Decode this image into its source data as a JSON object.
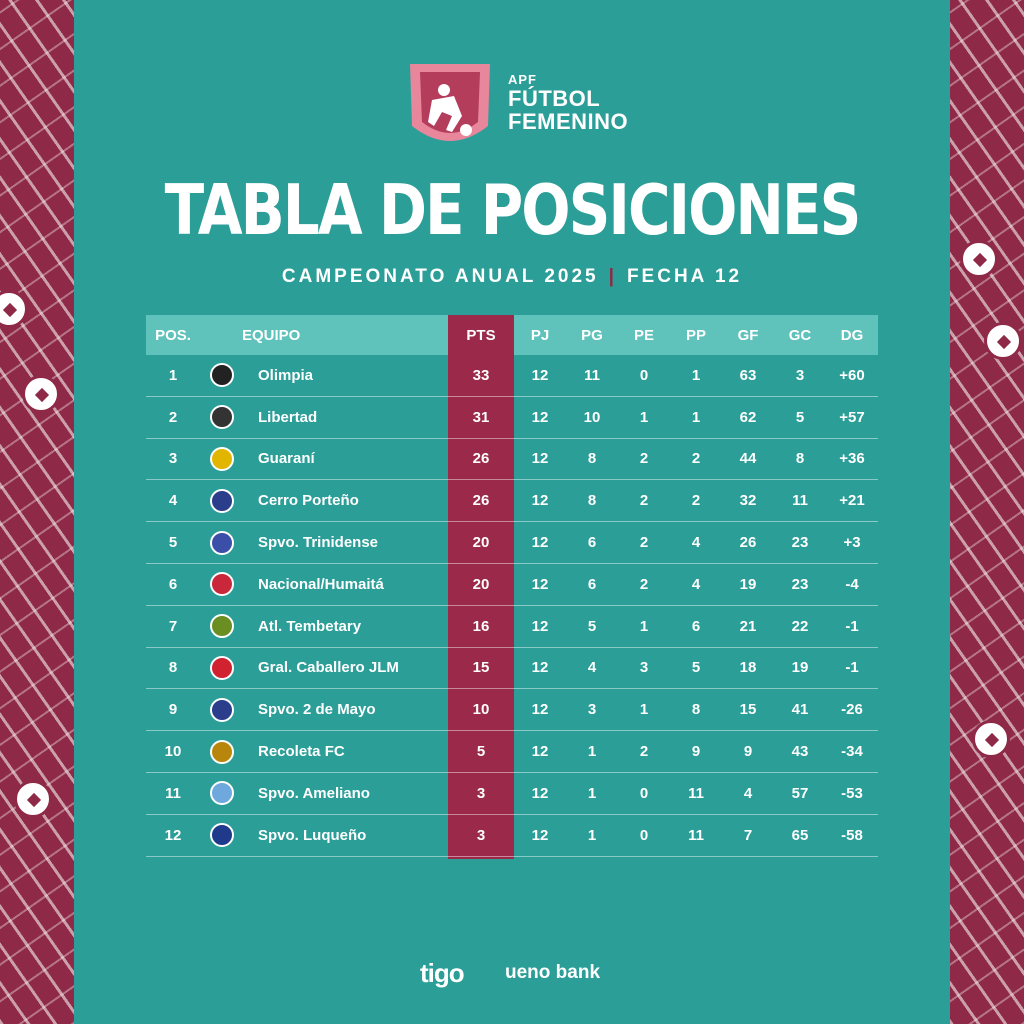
{
  "logo": {
    "apf": "APF",
    "line1": "FÚTBOL",
    "line2": "FEMENINO"
  },
  "title": "TABLA DE POSICIONES",
  "subtitle_left": "CAMPEONATO ANUAL 2025",
  "subtitle_sep": "|",
  "subtitle_right": "FECHA 12",
  "colors": {
    "teal": "#2b9e98",
    "header_teal": "#5fc2bb",
    "maroon": "#9b2a4a"
  },
  "headers": {
    "pos": "POS.",
    "team": "EQUIPO",
    "pts": "PTS",
    "pj": "PJ",
    "pg": "PG",
    "pe": "PE",
    "pp": "PP",
    "gf": "GF",
    "gc": "GC",
    "dg": "DG"
  },
  "rows": [
    {
      "pos": "1",
      "team": "Olimpia",
      "pts": "33",
      "pj": "12",
      "pg": "11",
      "pe": "0",
      "pp": "1",
      "gf": "63",
      "gc": "3",
      "dg": "+60",
      "crest_color": "#222222"
    },
    {
      "pos": "2",
      "team": "Libertad",
      "pts": "31",
      "pj": "12",
      "pg": "10",
      "pe": "1",
      "pp": "1",
      "gf": "62",
      "gc": "5",
      "dg": "+57",
      "crest_color": "#333333"
    },
    {
      "pos": "3",
      "team": "Guaraní",
      "pts": "26",
      "pj": "12",
      "pg": "8",
      "pe": "2",
      "pp": "2",
      "gf": "44",
      "gc": "8",
      "dg": "+36",
      "crest_color": "#e2b600"
    },
    {
      "pos": "4",
      "team": "Cerro Porteño",
      "pts": "26",
      "pj": "12",
      "pg": "8",
      "pe": "2",
      "pp": "2",
      "gf": "32",
      "gc": "11",
      "dg": "+21",
      "crest_color": "#2a3e8c"
    },
    {
      "pos": "5",
      "team": "Spvo. Trinidense",
      "pts": "20",
      "pj": "12",
      "pg": "6",
      "pe": "2",
      "pp": "4",
      "gf": "26",
      "gc": "23",
      "dg": "+3",
      "crest_color": "#3b4fa8"
    },
    {
      "pos": "6",
      "team": "Nacional/Humaitá",
      "pts": "20",
      "pj": "12",
      "pg": "6",
      "pe": "2",
      "pp": "4",
      "gf": "19",
      "gc": "23",
      "dg": "-4",
      "crest_color": "#c8283a"
    },
    {
      "pos": "7",
      "team": "Atl. Tembetary",
      "pts": "16",
      "pj": "12",
      "pg": "5",
      "pe": "1",
      "pp": "6",
      "gf": "21",
      "gc": "22",
      "dg": "-1",
      "crest_color": "#6b8e23"
    },
    {
      "pos": "8",
      "team": "Gral. Caballero JLM",
      "pts": "15",
      "pj": "12",
      "pg": "4",
      "pe": "3",
      "pp": "5",
      "gf": "18",
      "gc": "19",
      "dg": "-1",
      "crest_color": "#d0232f"
    },
    {
      "pos": "9",
      "team": "Spvo. 2 de Mayo",
      "pts": "10",
      "pj": "12",
      "pg": "3",
      "pe": "1",
      "pp": "8",
      "gf": "15",
      "gc": "41",
      "dg": "-26",
      "crest_color": "#2a3e8c"
    },
    {
      "pos": "10",
      "team": "Recoleta FC",
      "pts": "5",
      "pj": "12",
      "pg": "1",
      "pe": "2",
      "pp": "9",
      "gf": "9",
      "gc": "43",
      "dg": "-34",
      "crest_color": "#b8860b"
    },
    {
      "pos": "11",
      "team": "Spvo. Ameliano",
      "pts": "3",
      "pj": "12",
      "pg": "1",
      "pe": "0",
      "pp": "11",
      "gf": "4",
      "gc": "57",
      "dg": "-53",
      "crest_color": "#6fa8dc"
    },
    {
      "pos": "12",
      "team": "Spvo. Luqueño",
      "pts": "3",
      "pj": "12",
      "pg": "1",
      "pe": "0",
      "pp": "11",
      "gf": "7",
      "gc": "65",
      "dg": "-58",
      "crest_color": "#1f3a8a"
    }
  ],
  "sponsors": {
    "tigo": "tigo",
    "ueno": "ueno bank"
  }
}
